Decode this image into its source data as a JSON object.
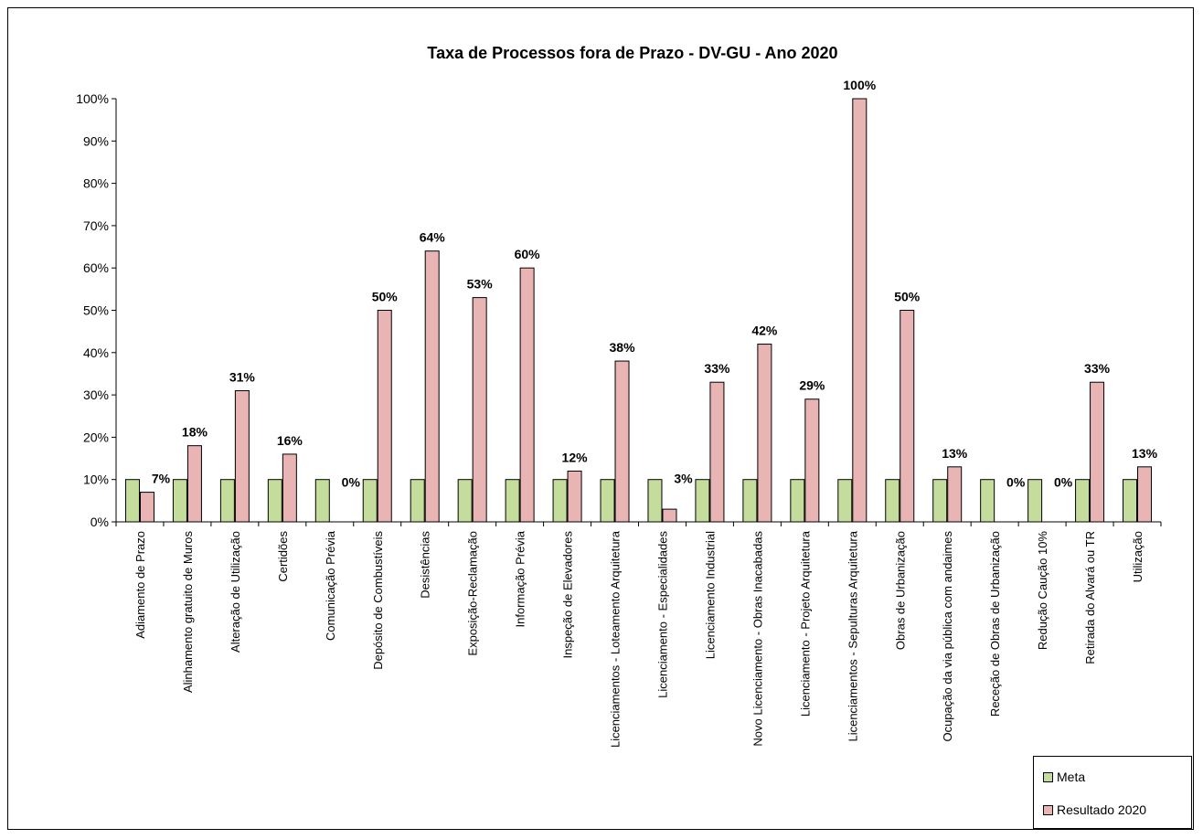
{
  "chart_data": {
    "type": "bar",
    "title": "Taxa de Processos fora de Prazo - DV-GU - Ano 2020",
    "xlabel": "",
    "ylabel": "",
    "ylim": [
      0,
      100
    ],
    "yticks": [
      "0%",
      "10%",
      "20%",
      "30%",
      "40%",
      "50%",
      "60%",
      "70%",
      "80%",
      "90%",
      "100%"
    ],
    "categories": [
      "Adiamento de Prazo",
      "Alinhamento gratuito de Muros",
      "Alteração de Utilização",
      "Certidões",
      "Comunicação Prévia",
      "Depósito de Combustíveis",
      "Desistências",
      "Exposição-Reclamação",
      "Informação Prévia",
      "Inspeção de Elevadores",
      "Licenciamentos - Loteamento Arquitetura",
      "Licenciamento - Especialidades",
      "Licenciamento Industrial",
      "Novo Licenciamento - Obras Inacabadas",
      "Licenciamento - Projeto Arquitetura",
      "Licenciamentos - Sepulturas Arquitetura",
      "Obras de Urbanização",
      "Ocupação da via pública com andaimes",
      "Receção de Obras de Urbanização",
      "Redução Caução 10%",
      "Retirada do Alvará ou TR",
      "Utilização"
    ],
    "series": [
      {
        "name": "Meta",
        "color": "#c4dc9c",
        "values": [
          10,
          10,
          10,
          10,
          10,
          10,
          10,
          10,
          10,
          10,
          10,
          10,
          10,
          10,
          10,
          10,
          10,
          10,
          10,
          10,
          10,
          10
        ]
      },
      {
        "name": "Resultado 2020",
        "color": "#e8b4b4",
        "values": [
          7,
          18,
          31,
          16,
          0,
          50,
          64,
          53,
          60,
          12,
          38,
          3,
          33,
          42,
          29,
          100,
          50,
          13,
          0,
          0,
          33,
          13
        ]
      }
    ],
    "data_labels": [
      "7%",
      "18%",
      "31%",
      "16%",
      "0%",
      "50%",
      "64%",
      "53%",
      "60%",
      "12%",
      "38%",
      "3%",
      "33%",
      "42%",
      "29%",
      "100%",
      "50%",
      "13%",
      "0%",
      "0%",
      "33%",
      "13%"
    ],
    "grid": false,
    "legend_position": "bottom-right"
  }
}
